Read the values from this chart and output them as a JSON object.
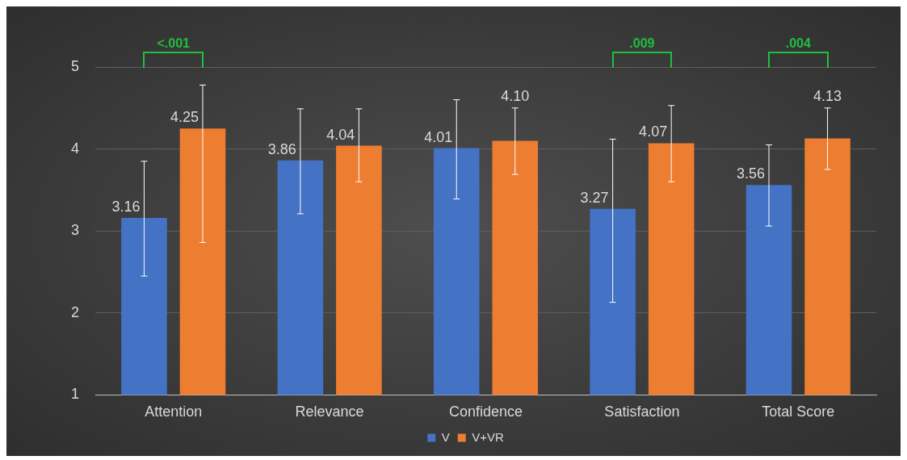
{
  "chart_data": {
    "type": "bar",
    "categories": [
      "Attention",
      "Relevance",
      "Confidence",
      "Satisfaction",
      "Total Score"
    ],
    "series": [
      {
        "name": "V",
        "color": "#4472c4",
        "values": [
          3.16,
          3.86,
          4.01,
          3.27,
          3.56
        ],
        "errors": [
          [
            2.45,
            3.85
          ],
          [
            3.21,
            4.49
          ],
          [
            3.39,
            4.6
          ],
          [
            2.13,
            4.12
          ],
          [
            3.06,
            4.05
          ]
        ],
        "value_labels": [
          "3.16",
          "3.86",
          "4.01",
          "3.27",
          "3.56"
        ]
      },
      {
        "name": "V+VR",
        "color": "#ed7d31",
        "values": [
          4.25,
          4.04,
          4.1,
          4.07,
          4.13
        ],
        "errors": [
          [
            2.86,
            4.78
          ],
          [
            3.6,
            4.49
          ],
          [
            3.69,
            4.5
          ],
          [
            3.6,
            4.53
          ],
          [
            3.75,
            4.5
          ]
        ],
        "value_labels": [
          "4.25",
          "4.04",
          "4.10",
          "4.07",
          "4.13"
        ]
      }
    ],
    "ylim": [
      1,
      5
    ],
    "yticks": [
      1,
      2,
      3,
      4,
      5
    ],
    "grid": "y",
    "legend": "bottom",
    "annotations": [
      "<.001",
      ".009",
      ".004"
    ]
  }
}
